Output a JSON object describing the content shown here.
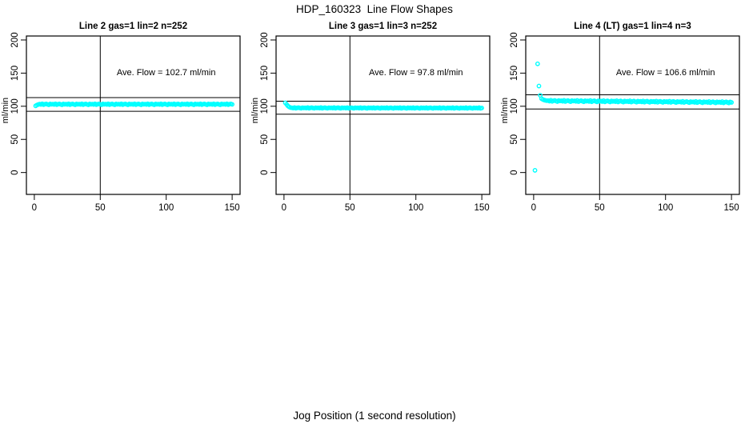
{
  "figure": {
    "main_title": "HDP_160323  Line Flow Shapes",
    "outer_xlabel": "Jog Position (1 second resolution)",
    "background": "#FFFFFF",
    "point_color": "#00FFFF",
    "axis_color": "#000000"
  },
  "chart_data": [
    {
      "type": "scatter",
      "title": "Line 2 gas=1 lin=2 n=252",
      "ylabel": "ml/min",
      "annotation": {
        "text": "Ave. Flow =  102.7  ml/min",
        "x": 100,
        "y": 147
      },
      "ave_flow_ml_min": 102.7,
      "n_points": 252,
      "xlim": [
        -6,
        156
      ],
      "ylim": [
        -33,
        206
      ],
      "xticks": [
        0,
        50,
        100,
        150
      ],
      "yticks": [
        0,
        50,
        100,
        150,
        200
      ],
      "hlines": [
        113.0,
        92.4
      ],
      "vlines": [
        50
      ],
      "grid": false,
      "points_head": [
        [
          1,
          100.6
        ],
        [
          2,
          101.9
        ],
        [
          3,
          102.6
        ]
      ],
      "band": {
        "x_from": 4,
        "x_to": 150,
        "x_step": 1,
        "level_start": 103.0,
        "level_end": 103.0,
        "noise_amplitude": 0.9,
        "noise_cycle": [
          0.3,
          -0.4,
          0.8,
          -0.7,
          0.1,
          0.6,
          -0.2,
          -0.8,
          0.5,
          -0.1
        ]
      }
    },
    {
      "type": "scatter",
      "title": "Line 3 gas=1 lin=3 n=252",
      "ylabel": "ml/min",
      "annotation": {
        "text": "Ave. Flow =  97.8  ml/min",
        "x": 100,
        "y": 147
      },
      "ave_flow_ml_min": 97.8,
      "n_points": 252,
      "xlim": [
        -6,
        156
      ],
      "ylim": [
        -33,
        206
      ],
      "xticks": [
        0,
        50,
        100,
        150
      ],
      "yticks": [
        0,
        50,
        100,
        150,
        200
      ],
      "hlines": [
        107.6,
        88.0
      ],
      "vlines": [
        50
      ],
      "grid": false,
      "points_head": [
        [
          1,
          105.2
        ],
        [
          2,
          102.8
        ],
        [
          3,
          100.4
        ],
        [
          4,
          98.9
        ],
        [
          5,
          98.0
        ]
      ],
      "band": {
        "x_from": 6,
        "x_to": 150,
        "x_step": 1,
        "level_start": 97.5,
        "level_end": 97.3,
        "noise_amplitude": 0.7,
        "noise_cycle": [
          0.3,
          -0.4,
          0.8,
          -0.7,
          0.1,
          0.6,
          -0.2,
          -0.8,
          0.5,
          -0.1
        ]
      }
    },
    {
      "type": "scatter",
      "title": "Line 4 (LT) gas=1 lin=4 n=3",
      "ylabel": "ml/min",
      "annotation": {
        "text": "Ave. Flow =  106.6  ml/min",
        "x": 100,
        "y": 147
      },
      "ave_flow_ml_min": 106.6,
      "n_points": 3,
      "xlim": [
        -6,
        156
      ],
      "ylim": [
        -33,
        206
      ],
      "xticks": [
        0,
        50,
        100,
        150
      ],
      "yticks": [
        0,
        50,
        100,
        150,
        200
      ],
      "hlines": [
        117.3,
        95.9
      ],
      "vlines": [
        50
      ],
      "grid": false,
      "points_head": [
        [
          1,
          3.3
        ],
        [
          3,
          164.0
        ],
        [
          4,
          130.5
        ],
        [
          5,
          116.5
        ],
        [
          6,
          111.5
        ],
        [
          7,
          110.2
        ],
        [
          8,
          109.4
        ],
        [
          9,
          108.8
        ],
        [
          10,
          108.4
        ]
      ],
      "band": {
        "x_from": 11,
        "x_to": 150,
        "x_step": 1,
        "level_start": 108.2,
        "level_end": 105.9,
        "noise_amplitude": 1.2,
        "noise_cycle": [
          0.3,
          -0.4,
          0.8,
          -0.7,
          0.1,
          0.6,
          -0.2,
          -0.8,
          0.5,
          -0.1
        ]
      }
    }
  ]
}
